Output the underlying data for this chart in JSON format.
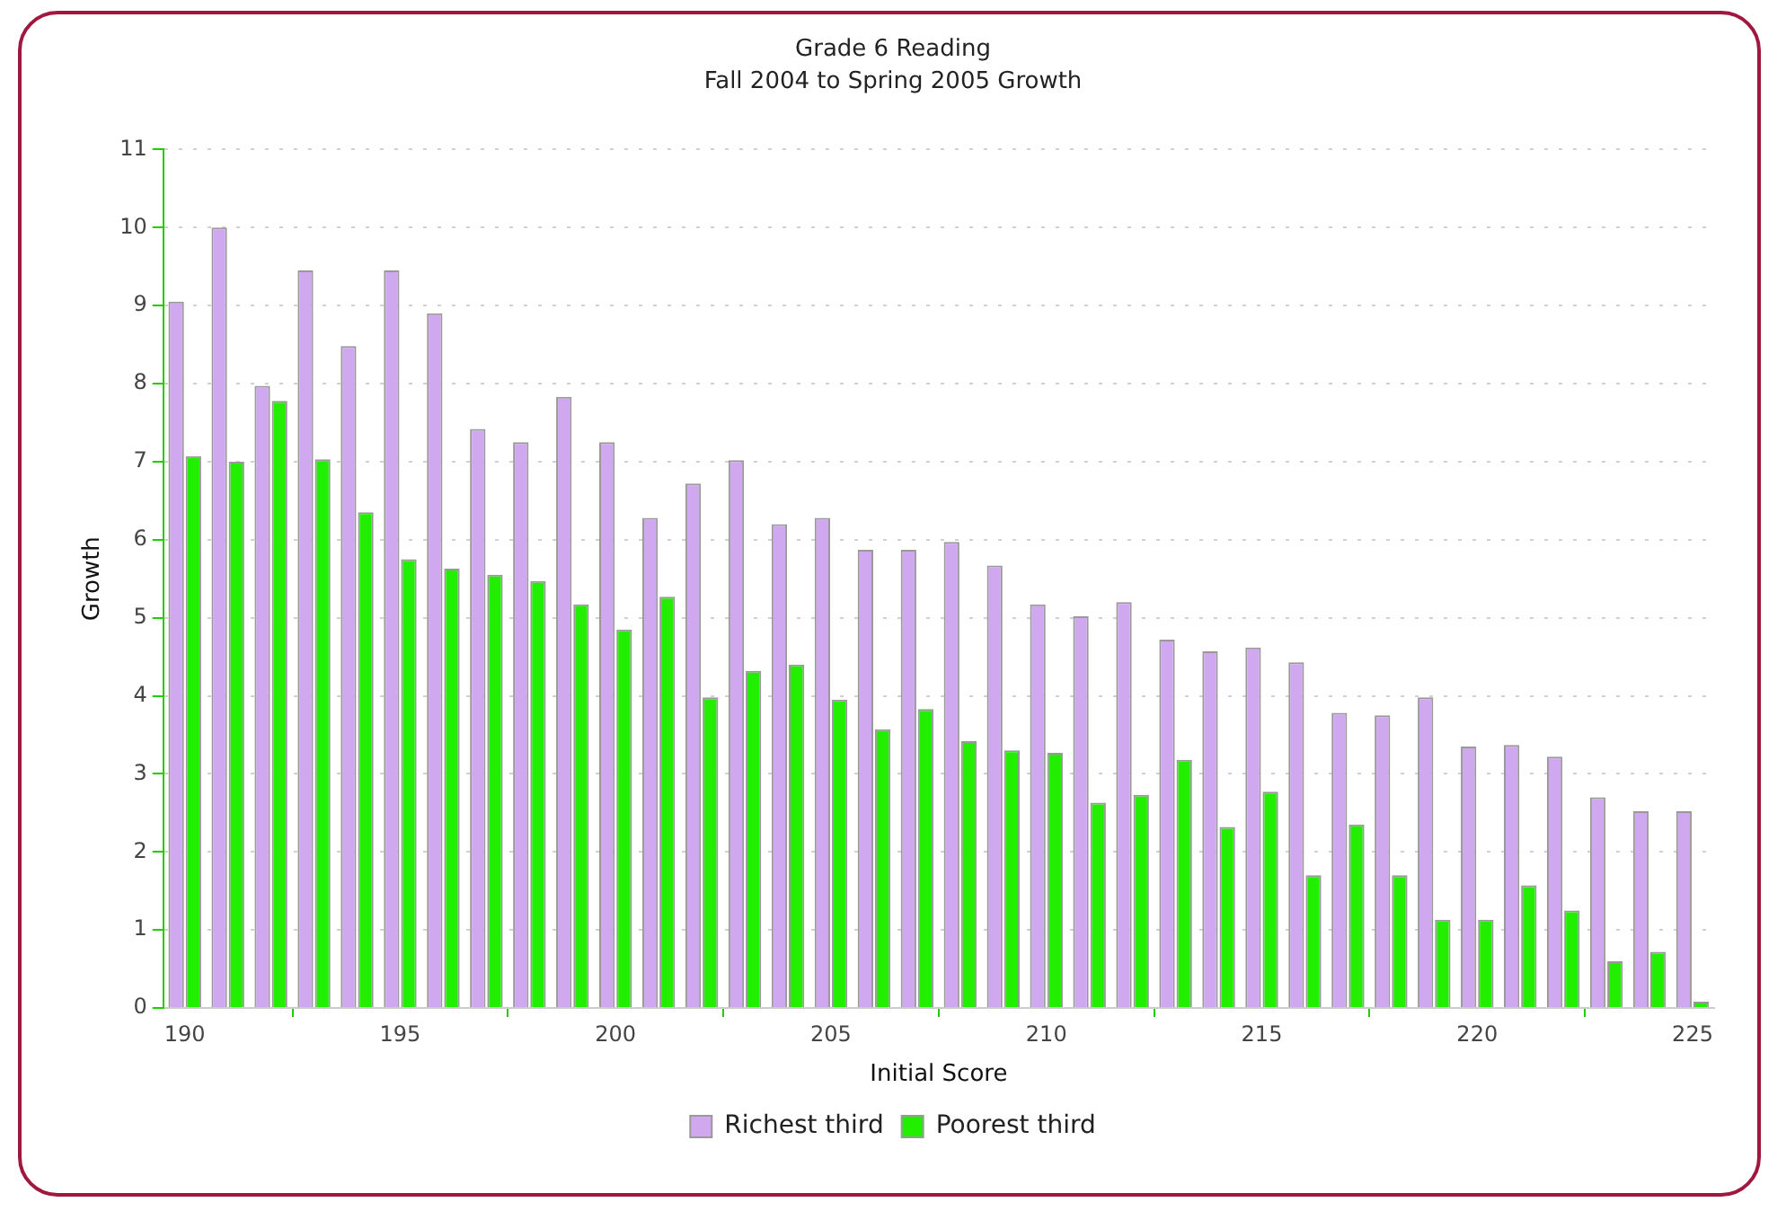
{
  "chart_data": {
    "type": "bar",
    "title": "Grade 6 Reading",
    "subtitle": "Fall 2004 to Spring 2005 Growth",
    "xlabel": "Initial Score",
    "ylabel": "Growth",
    "x": [
      190,
      191,
      192,
      193,
      194,
      195,
      196,
      197,
      198,
      199,
      200,
      201,
      202,
      203,
      204,
      205,
      206,
      207,
      208,
      209,
      210,
      211,
      212,
      213,
      214,
      215,
      216,
      217,
      218,
      219,
      220,
      221,
      222,
      223,
      224,
      225
    ],
    "series": [
      {
        "name": "Richest third",
        "color": "#cfa8f0",
        "values": [
          9.05,
          10,
          7.97,
          9.45,
          8.48,
          9.45,
          8.9,
          7.42,
          7.25,
          7.83,
          7.25,
          6.28,
          6.72,
          7.02,
          6.2,
          6.28,
          5.87,
          5.87,
          5.97,
          5.67,
          5.17,
          5.02,
          5.2,
          4.72,
          4.57,
          4.62,
          4.43,
          3.78,
          3.75,
          3.98,
          3.35,
          3.37,
          3.22,
          2.7,
          2.52,
          2.52
        ]
      },
      {
        "name": "Poorest third",
        "color": "#22ee00",
        "values": [
          7.07,
          7.0,
          7.78,
          7.03,
          6.35,
          5.75,
          5.63,
          5.55,
          5.47,
          5.17,
          4.85,
          5.27,
          3.98,
          4.32,
          4.4,
          3.95,
          3.57,
          3.83,
          3.42,
          3.3,
          3.27,
          2.63,
          2.73,
          3.18,
          2.32,
          2.77,
          1.7,
          2.35,
          1.7,
          1.13,
          1.13,
          1.57,
          1.25,
          0.6,
          0.72,
          0.08
        ]
      }
    ],
    "xlim": [
      189.5,
      225.5
    ],
    "xticks": [
      190,
      195,
      200,
      205,
      210,
      215,
      220,
      225
    ],
    "ylim": [
      0,
      11
    ],
    "yticks": [
      0,
      1,
      2,
      3,
      4,
      5,
      6,
      7,
      8,
      9,
      10,
      11
    ],
    "grid": "y",
    "legend": "bottom"
  }
}
